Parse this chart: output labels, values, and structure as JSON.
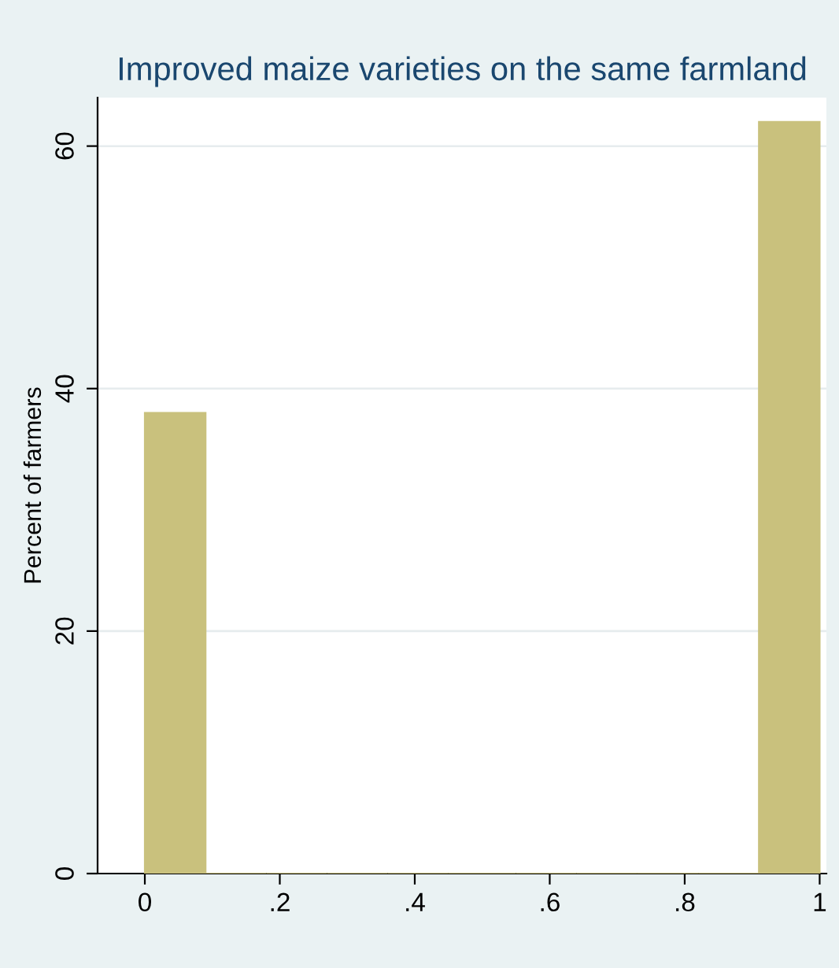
{
  "chart_data": {
    "type": "histogram",
    "title": "Improved maize varieties on the same farmland",
    "ylabel": "Percent of farmers",
    "bins": [
      0,
      0.09,
      0.18,
      0.27,
      0.36,
      0.45,
      0.55,
      0.64,
      0.73,
      0.82,
      0.91,
      1
    ],
    "values": [
      38,
      0,
      0,
      0,
      0,
      0,
      0,
      0,
      0,
      0,
      62
    ],
    "color": "#c9c17d",
    "xlim": [
      -0.07,
      1.01
    ],
    "xticks": [
      {
        "value": 0,
        "label": "0"
      },
      {
        "value": 0.2,
        "label": ".2"
      },
      {
        "value": 0.4,
        "label": ".4"
      },
      {
        "value": 0.6,
        "label": ".6"
      },
      {
        "value": 0.8,
        "label": ".8"
      },
      {
        "value": 1,
        "label": "1"
      }
    ],
    "ylim": [
      0,
      64
    ],
    "yticks": [
      0,
      20,
      40,
      60
    ],
    "grid": "y"
  }
}
